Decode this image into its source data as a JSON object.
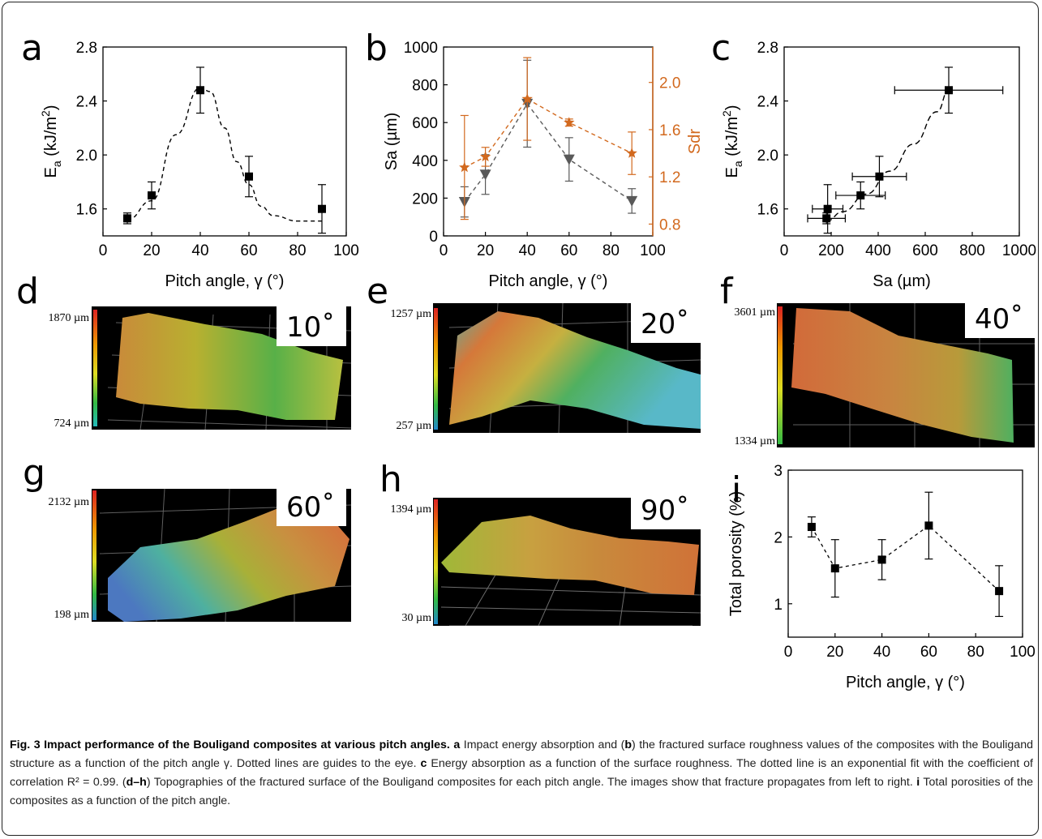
{
  "figure": {
    "caption": {
      "title": "Fig. 3 Impact performance of the Bouligand composites at various pitch angles.",
      "body": [
        {
          "t": " ",
          "b": false
        },
        {
          "t": "a",
          "b": true
        },
        {
          "t": " Impact energy absorption and (",
          "b": false
        },
        {
          "t": "b",
          "b": true
        },
        {
          "t": ") the fractured surface roughness values of the composites with the Bouligand structure as a function of the pitch angle γ. Dotted lines are guides to the eye. ",
          "b": false
        },
        {
          "t": "c",
          "b": true
        },
        {
          "t": " Energy absorption as a function of the surface roughness. The dotted line is an exponential fit with the coefficient of correlation R² = 0.99. (",
          "b": false
        },
        {
          "t": "d–h",
          "b": true
        },
        {
          "t": ") Topographies of the fractured surface of the Bouligand composites for each pitch angle. The images show that fracture propagates from left to right. ",
          "b": false
        },
        {
          "t": "i",
          "b": true
        },
        {
          "t": " Total porosities of the composites as a function of the pitch angle.",
          "b": false
        }
      ]
    },
    "topographies": [
      {
        "letter": "d",
        "angle": "10˚",
        "top_label": "1870 µm",
        "bottom_label": "724 µm"
      },
      {
        "letter": "e",
        "angle": "20˚",
        "top_label": "1257 µm",
        "bottom_label": "257 µm"
      },
      {
        "letter": "f",
        "angle": "40˚",
        "top_label": "3601 µm",
        "bottom_label": "1334 µm"
      },
      {
        "letter": "g",
        "angle": "60˚",
        "top_label": "2132 µm",
        "bottom_label": "198 µm"
      },
      {
        "letter": "h",
        "angle": "90˚",
        "top_label": "1394 µm",
        "bottom_label": "30 µm"
      }
    ]
  },
  "chart_data": [
    {
      "panel": "a",
      "type": "scatter",
      "xlabel": "Pitch angle, γ (°)",
      "ylabel": "E",
      "ylabel_sub": "a",
      "ylabel_unit": " (kJ/m",
      "ylabel_sup": "2",
      "ylabel_end": ")",
      "xlim": [
        0,
        100
      ],
      "ylim": [
        1.4,
        2.8
      ],
      "xticks": [
        0,
        20,
        40,
        60,
        80,
        100
      ],
      "yticks": [
        1.6,
        2.0,
        2.4,
        2.8
      ],
      "yticklabels": [
        "1.6",
        "2.0",
        "2.4",
        "2.8"
      ],
      "x": [
        10,
        20,
        40,
        60,
        90
      ],
      "y": [
        1.53,
        1.7,
        2.48,
        1.84,
        1.6
      ],
      "yerr": [
        0.04,
        0.1,
        0.17,
        0.15,
        0.18
      ],
      "guide": {
        "style": "dashed",
        "points": [
          [
            10,
            1.52
          ],
          [
            20,
            1.66
          ],
          [
            30,
            2.15
          ],
          [
            40,
            2.5
          ],
          [
            44,
            2.47
          ],
          [
            50,
            2.2
          ],
          [
            55,
            1.95
          ],
          [
            60,
            1.78
          ],
          [
            65,
            1.62
          ],
          [
            70,
            1.55
          ],
          [
            80,
            1.51
          ],
          [
            90,
            1.51
          ]
        ]
      }
    },
    {
      "panel": "b",
      "type": "scatter",
      "xlabel": "Pitch angle, γ (°)",
      "ylabel": "Sa (µm)",
      "ylabel_right": "Sdr",
      "xlim": [
        0,
        100
      ],
      "ylim": [
        0,
        1000
      ],
      "ylim_right": [
        0.7,
        2.3
      ],
      "xticks": [
        0,
        20,
        40,
        60,
        80,
        100
      ],
      "yticks": [
        0,
        200,
        400,
        600,
        800,
        1000
      ],
      "yticks_right": [
        0.8,
        1.2,
        1.6,
        2.0
      ],
      "yticklabels_right": [
        "0.8",
        "1.2",
        "1.6",
        "2.0"
      ],
      "series": [
        {
          "name": "Sa",
          "axis": "left",
          "color": "#595959",
          "marker": "triangle-down",
          "x": [
            10,
            20,
            40,
            60,
            90
          ],
          "y": [
            180,
            325,
            700,
            405,
            185
          ],
          "yerr": [
            80,
            105,
            230,
            115,
            65
          ]
        },
        {
          "name": "Sdr",
          "axis": "right",
          "color": "#d2691e",
          "marker": "star",
          "x": [
            10,
            20,
            40,
            60,
            90
          ],
          "y": [
            1.28,
            1.37,
            1.86,
            1.66,
            1.4
          ],
          "yerr": [
            0.44,
            0.08,
            0.35,
            0.03,
            0.18
          ]
        }
      ]
    },
    {
      "panel": "c",
      "type": "scatter",
      "xlabel": "Sa (µm)",
      "ylabel": "E",
      "ylabel_sub": "a",
      "ylabel_unit": " (kJ/m",
      "ylabel_sup": "2",
      "ylabel_end": ")",
      "xlim": [
        0,
        1000
      ],
      "ylim": [
        1.4,
        2.8
      ],
      "xticks": [
        0,
        200,
        400,
        600,
        800,
        1000
      ],
      "yticks": [
        1.6,
        2.0,
        2.4,
        2.8
      ],
      "yticklabels": [
        "1.6",
        "2.0",
        "2.4",
        "2.8"
      ],
      "x": [
        180,
        185,
        325,
        405,
        700
      ],
      "y": [
        1.53,
        1.6,
        1.7,
        1.84,
        2.48
      ],
      "xerr": [
        80,
        65,
        105,
        115,
        230
      ],
      "yerr": [
        0.04,
        0.18,
        0.1,
        0.15,
        0.17
      ],
      "guide": {
        "style": "dashed",
        "points": [
          [
            180,
            1.51
          ],
          [
            250,
            1.58
          ],
          [
            350,
            1.71
          ],
          [
            450,
            1.88
          ],
          [
            550,
            2.08
          ],
          [
            650,
            2.32
          ],
          [
            700,
            2.48
          ]
        ]
      }
    },
    {
      "panel": "i",
      "type": "scatter",
      "xlabel": "Pitch angle, γ (°)",
      "ylabel": "Total porosity (%)",
      "xlim": [
        0,
        100
      ],
      "ylim": [
        0.5,
        3
      ],
      "xticks": [
        0,
        20,
        40,
        60,
        80,
        100
      ],
      "yticks": [
        1,
        2,
        3
      ],
      "x": [
        10,
        20,
        40,
        60,
        90
      ],
      "y": [
        2.15,
        1.53,
        1.66,
        2.17,
        1.19
      ],
      "yerr": [
        0.15,
        0.43,
        0.3,
        0.5,
        0.38
      ],
      "guide": {
        "style": "dashed"
      }
    }
  ]
}
